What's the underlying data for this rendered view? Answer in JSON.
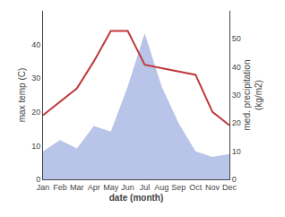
{
  "chart_data": {
    "type": "line",
    "categories": [
      "Jan",
      "Feb",
      "Mar",
      "Apr",
      "May",
      "Jun",
      "Jul",
      "Aug",
      "Sep",
      "Oct",
      "Nov",
      "Dec"
    ],
    "series": [
      {
        "type": "line",
        "color": "#c0393b",
        "values": [
          19,
          23,
          27,
          35,
          44,
          44,
          34,
          33,
          32,
          31,
          20,
          16
        ]
      },
      {
        "type": "area",
        "color": "#b8c4e8",
        "axis": "y2",
        "values": [
          10,
          14,
          11,
          19,
          17,
          33,
          52,
          33,
          20,
          10,
          8,
          9
        ]
      }
    ],
    "x_label": "date (month)",
    "y_label": "max temp (C)",
    "y2_label": "med. precipitation\n(kg/m2)",
    "ylim": [
      0,
      50
    ],
    "yticks": [
      0,
      10,
      20,
      30,
      40
    ],
    "y2lim": [
      0,
      60
    ],
    "y2ticks": [
      0,
      10,
      20,
      30,
      40,
      50
    ],
    "grid": false
  }
}
